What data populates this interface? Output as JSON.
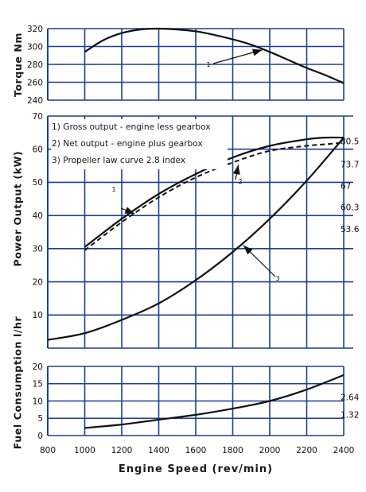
{
  "xlabel": "Engine Speed (rev/min)",
  "chart_data": [
    {
      "type": "line",
      "ylabel": "Torque Nm",
      "ylim": [
        240,
        320
      ],
      "yticks": [
        240,
        260,
        280,
        300,
        320
      ],
      "xlim": [
        800,
        2400
      ],
      "xticks": [
        800,
        1000,
        1200,
        1400,
        1600,
        1800,
        2000,
        2200,
        2400
      ],
      "grid": true,
      "series": [
        {
          "label": "1",
          "x": [
            1000,
            1100,
            1200,
            1300,
            1400,
            1500,
            1600,
            1700,
            1800,
            1900,
            2000,
            2100,
            2200,
            2300,
            2400
          ],
          "y": [
            294,
            307,
            315,
            319,
            320,
            319,
            317,
            313,
            308,
            302,
            294,
            285,
            276,
            268,
            259
          ]
        }
      ]
    },
    {
      "type": "line",
      "ylabel": "Power Output (kW)",
      "ylim": [
        0,
        70
      ],
      "yticks": [
        10,
        20,
        30,
        40,
        50,
        60,
        70
      ],
      "xlim": [
        800,
        2400
      ],
      "xticks": [
        800,
        1000,
        1200,
        1400,
        1600,
        1800,
        2000,
        2200,
        2400
      ],
      "grid": true,
      "legend": [
        "1) Gross output - engine less gearbox",
        "2) Net output - engine plus gearbox",
        "3) Propeller law curve 2.8 index"
      ],
      "legend_position": "top-left",
      "right_labels": [
        "80.5",
        "73.7",
        "67",
        "60.3",
        "53.6"
      ],
      "series": [
        {
          "label": "1",
          "style": "solid",
          "x": [
            1000,
            1200,
            1400,
            1600,
            1800,
            2000,
            2200,
            2300,
            2400
          ],
          "y": [
            30.5,
            39,
            46.5,
            52.5,
            57.5,
            61,
            63,
            63.5,
            63.5
          ]
        },
        {
          "label": "2",
          "style": "dashed",
          "x": [
            1000,
            1200,
            1400,
            1600,
            1800,
            2000,
            2200,
            2300,
            2400
          ],
          "y": [
            29.5,
            38,
            45.5,
            51.5,
            56,
            59.5,
            61,
            61.5,
            62
          ]
        },
        {
          "label": "3",
          "style": "solid",
          "x": [
            800,
            1000,
            1200,
            1400,
            1600,
            1800,
            2000,
            2200,
            2400
          ],
          "y": [
            2.5,
            4.5,
            8.5,
            13.5,
            20.5,
            29,
            39,
            50.5,
            63.5
          ]
        }
      ]
    },
    {
      "type": "line",
      "ylabel": "Fuel Consumption l/hr",
      "ylim": [
        0,
        20
      ],
      "yticks": [
        0,
        5,
        10,
        15,
        20
      ],
      "xlim": [
        800,
        2400
      ],
      "xticks": [
        800,
        1000,
        1200,
        1400,
        1600,
        1800,
        2000,
        2200,
        2400
      ],
      "grid": true,
      "right_labels": [
        "2.64",
        "1.32"
      ],
      "series": [
        {
          "label": "",
          "style": "solid",
          "x": [
            1000,
            1200,
            1400,
            1600,
            1800,
            2000,
            2200,
            2400
          ],
          "y": [
            2.2,
            3.2,
            4.6,
            6.0,
            7.8,
            10.0,
            13.3,
            17.5
          ]
        }
      ]
    }
  ]
}
